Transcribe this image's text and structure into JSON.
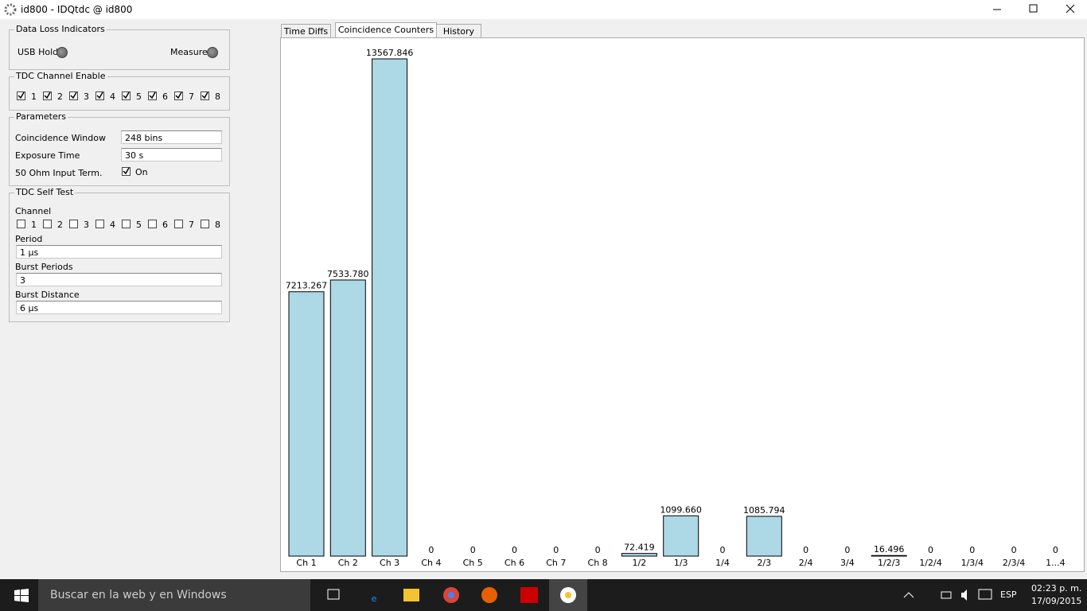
{
  "window": {
    "title": "id800 - IDQtdc @ id800"
  },
  "sidebar": {
    "data_loss": {
      "title": "Data Loss Indicators",
      "usb_hold": "USB Hold",
      "measure": "Measure"
    },
    "channel_enable": {
      "title": "TDC Channel Enable",
      "channels": [
        "1",
        "2",
        "3",
        "4",
        "5",
        "6",
        "7",
        "8"
      ],
      "checked": [
        true,
        true,
        true,
        true,
        true,
        true,
        true,
        true
      ]
    },
    "parameters": {
      "title": "Parameters",
      "rows": [
        {
          "label": "Coincidence Window",
          "value": "248 bins"
        },
        {
          "label": "Exposure Time",
          "value": "30 s"
        },
        {
          "label": "50 Ohm Input Term.",
          "value": "On",
          "checked": true
        }
      ]
    },
    "self_test": {
      "title": "TDC Self Test",
      "channel_label": "Channel",
      "channels": [
        "1",
        "2",
        "3",
        "4",
        "5",
        "6",
        "7",
        "8"
      ],
      "checked": [
        false,
        false,
        false,
        false,
        false,
        false,
        false,
        false
      ],
      "fields": [
        {
          "label": "Period",
          "value": "1 μs"
        },
        {
          "label": "Burst Periods",
          "value": "3"
        },
        {
          "label": "Burst Distance",
          "value": "6 μs"
        }
      ]
    }
  },
  "tabs": {
    "items": [
      "Time Diffs",
      "Coincidence Counters",
      "History"
    ],
    "active": 1
  },
  "chart_data": {
    "type": "bar",
    "color": "#add8e6",
    "categories": [
      "Ch 1",
      "Ch 2",
      "Ch 3",
      "Ch 4",
      "Ch 5",
      "Ch 6",
      "Ch 7",
      "Ch 8",
      "1/2",
      "1/3",
      "1/4",
      "2/3",
      "2/4",
      "3/4",
      "1/2/3",
      "1/2/4",
      "1/3/4",
      "2/3/4",
      "1...4"
    ],
    "values": [
      7213.267,
      7533.78,
      13567.846,
      0,
      0,
      0,
      0,
      0,
      72.419,
      1099.66,
      0,
      1085.794,
      0,
      0,
      16.496,
      0,
      0,
      0,
      0
    ],
    "value_labels": [
      "7213.267",
      "7533.780",
      "13567.846",
      "0",
      "0",
      "0",
      "0",
      "0",
      "72.419",
      "1099.660",
      "0",
      "1085.794",
      "0",
      "0",
      "16.496",
      "0",
      "0",
      "0",
      "0"
    ]
  },
  "taskbar": {
    "search": "Buscar en la web y en Windows",
    "language": "ESP",
    "time": "02:23 p. m.",
    "date": "17/09/2015"
  }
}
